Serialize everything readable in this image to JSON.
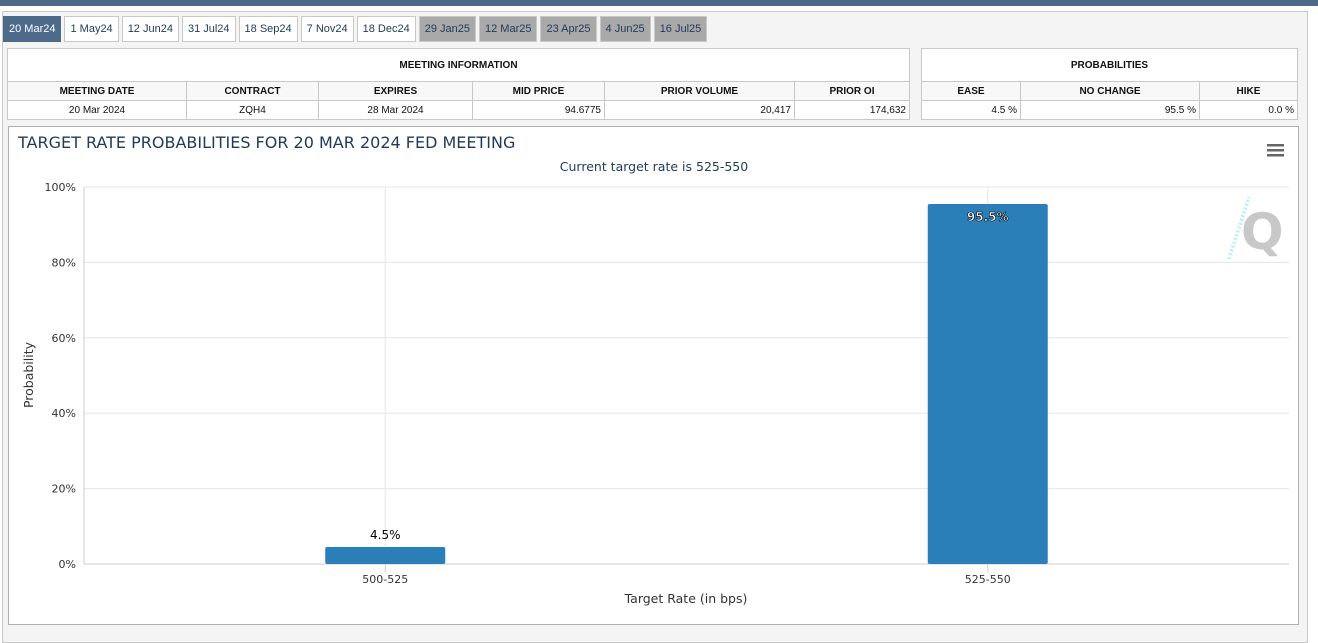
{
  "tabs": [
    {
      "label": "20 Mar24",
      "state": "active"
    },
    {
      "label": "1 May24",
      "state": "normal"
    },
    {
      "label": "12 Jun24",
      "state": "normal"
    },
    {
      "label": "31 Jul24",
      "state": "normal"
    },
    {
      "label": "18 Sep24",
      "state": "normal"
    },
    {
      "label": "7 Nov24",
      "state": "normal"
    },
    {
      "label": "18 Dec24",
      "state": "normal"
    },
    {
      "label": "29 Jan25",
      "state": "disabled"
    },
    {
      "label": "12 Mar25",
      "state": "disabled"
    },
    {
      "label": "23 Apr25",
      "state": "disabled"
    },
    {
      "label": "4 Jun25",
      "state": "disabled"
    },
    {
      "label": "16 Jul25",
      "state": "disabled"
    }
  ],
  "meeting_info": {
    "title": "MEETING INFORMATION",
    "headers": [
      "MEETING DATE",
      "CONTRACT",
      "EXPIRES",
      "MID PRICE",
      "PRIOR VOLUME",
      "PRIOR OI"
    ],
    "row": [
      "20 Mar 2024",
      "ZQH4",
      "28 Mar 2024",
      "94.6775",
      "20,417",
      "174,632"
    ]
  },
  "probabilities": {
    "title": "PROBABILITIES",
    "headers": [
      "EASE",
      "NO CHANGE",
      "HIKE"
    ],
    "row": [
      "4.5 %",
      "95.5 %",
      "0.0 %"
    ]
  },
  "chart_data": {
    "type": "bar",
    "title": "TARGET RATE PROBABILITIES FOR 20 MAR 2024 FED MEETING",
    "subtitle": "Current target rate is 525-550",
    "xlabel": "Target Rate (in bps)",
    "ylabel": "Probability",
    "categories": [
      "500-525",
      "525-550"
    ],
    "values": [
      4.5,
      95.5
    ],
    "data_labels": [
      "4.5%",
      "95.5%"
    ],
    "ylim": [
      0,
      100
    ],
    "yticks": [
      "0%",
      "20%",
      "40%",
      "60%",
      "80%",
      "100%"
    ],
    "grid": true,
    "bar_color": "#2a7fb8"
  },
  "menu_icon": "hamburger-menu-icon"
}
